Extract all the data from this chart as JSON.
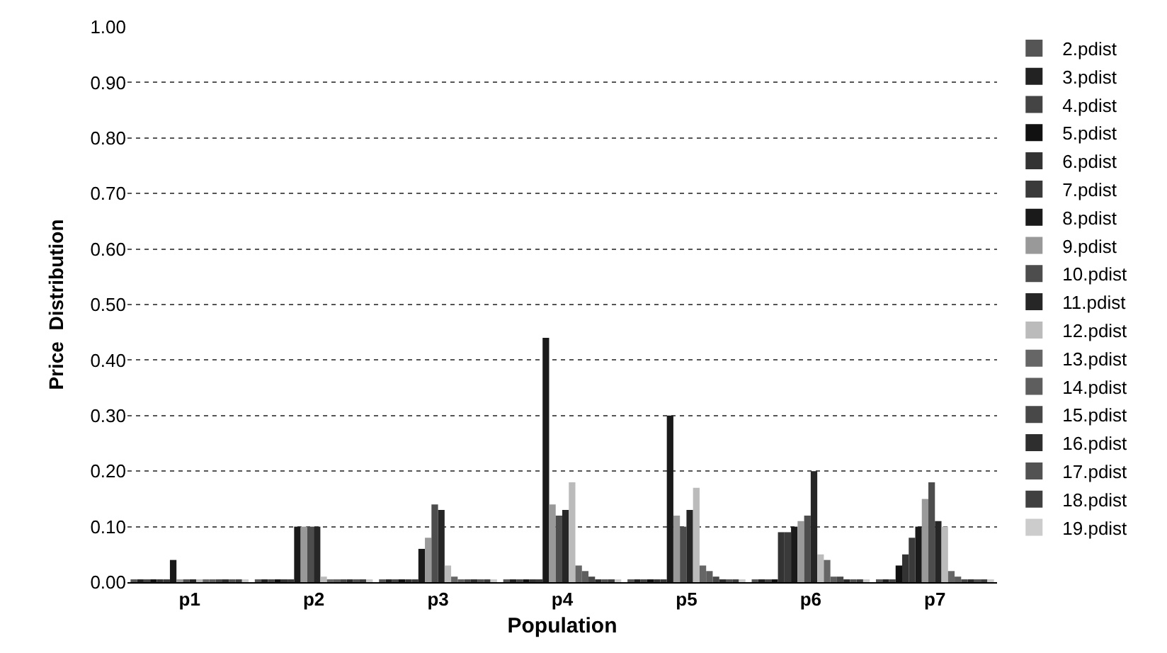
{
  "chart_data": {
    "type": "bar",
    "xlabel": "Population",
    "ylabel": "Price  Distribution",
    "categories": [
      "p1",
      "p2",
      "p3",
      "p4",
      "p5",
      "p6",
      "p7"
    ],
    "ylim": [
      0,
      1.0
    ],
    "yticks": [
      {
        "value": 0,
        "label": "0.00"
      },
      {
        "value": 0.1,
        "label": "0.10"
      },
      {
        "value": 0.2,
        "label": "0.20"
      },
      {
        "value": 0.3,
        "label": "0.30"
      },
      {
        "value": 0.4,
        "label": "0.40"
      },
      {
        "value": 0.5,
        "label": "0.50"
      },
      {
        "value": 0.6,
        "label": "0.60"
      },
      {
        "value": 0.7,
        "label": "0.70"
      },
      {
        "value": 0.8,
        "label": "0.80"
      },
      {
        "value": 0.9,
        "label": "0.90"
      },
      {
        "value": 1.0,
        "label": "1.00"
      }
    ],
    "grid": "y",
    "legend": "right",
    "series": [
      {
        "name": "2.pdist",
        "color": "#555555",
        "values": [
          0.005,
          0.005,
          0.005,
          0.005,
          0.005,
          0.005,
          0.005
        ]
      },
      {
        "name": "3.pdist",
        "color": "#222222",
        "values": [
          0.005,
          0.005,
          0.005,
          0.005,
          0.005,
          0.005,
          0.005
        ]
      },
      {
        "name": "4.pdist",
        "color": "#444444",
        "values": [
          0.005,
          0.005,
          0.005,
          0.005,
          0.005,
          0.005,
          0.005
        ]
      },
      {
        "name": "5.pdist",
        "color": "#111111",
        "values": [
          0.005,
          0.005,
          0.005,
          0.005,
          0.005,
          0.005,
          0.03
        ]
      },
      {
        "name": "6.pdist",
        "color": "#333333",
        "values": [
          0.005,
          0.005,
          0.005,
          0.005,
          0.005,
          0.09,
          0.05
        ]
      },
      {
        "name": "7.pdist",
        "color": "#3a3a3a",
        "values": [
          0.005,
          0.005,
          0.005,
          0.005,
          0.005,
          0.09,
          0.08
        ]
      },
      {
        "name": "8.pdist",
        "color": "#1a1a1a",
        "values": [
          0.04,
          0.1,
          0.06,
          0.44,
          0.3,
          0.1,
          0.1
        ]
      },
      {
        "name": "9.pdist",
        "color": "#999999",
        "values": [
          0.005,
          0.1,
          0.08,
          0.14,
          0.12,
          0.11,
          0.15
        ]
      },
      {
        "name": "10.pdist",
        "color": "#4d4d4d",
        "values": [
          0.005,
          0.1,
          0.14,
          0.12,
          0.1,
          0.12,
          0.18
        ]
      },
      {
        "name": "11.pdist",
        "color": "#262626",
        "values": [
          0.005,
          0.1,
          0.13,
          0.13,
          0.13,
          0.2,
          0.11
        ]
      },
      {
        "name": "12.pdist",
        "color": "#bbbbbb",
        "values": [
          0.005,
          0.01,
          0.03,
          0.18,
          0.17,
          0.05,
          0.1
        ]
      },
      {
        "name": "13.pdist",
        "color": "#666666",
        "values": [
          0.005,
          0.005,
          0.01,
          0.03,
          0.03,
          0.04,
          0.02
        ]
      },
      {
        "name": "14.pdist",
        "color": "#5e5e5e",
        "values": [
          0.005,
          0.005,
          0.005,
          0.02,
          0.02,
          0.01,
          0.01
        ]
      },
      {
        "name": "15.pdist",
        "color": "#484848",
        "values": [
          0.005,
          0.005,
          0.005,
          0.01,
          0.01,
          0.01,
          0.005
        ]
      },
      {
        "name": "16.pdist",
        "color": "#2e2e2e",
        "values": [
          0.005,
          0.005,
          0.005,
          0.005,
          0.005,
          0.005,
          0.005
        ]
      },
      {
        "name": "17.pdist",
        "color": "#525252",
        "values": [
          0.005,
          0.005,
          0.005,
          0.005,
          0.005,
          0.005,
          0.005
        ]
      },
      {
        "name": "18.pdist",
        "color": "#404040",
        "values": [
          0.005,
          0.005,
          0.005,
          0.005,
          0.005,
          0.005,
          0.005
        ]
      },
      {
        "name": "19.pdist",
        "color": "#cccccc",
        "values": [
          0.005,
          0.005,
          0.005,
          0.005,
          0.005,
          0.005,
          0.005
        ]
      }
    ]
  }
}
